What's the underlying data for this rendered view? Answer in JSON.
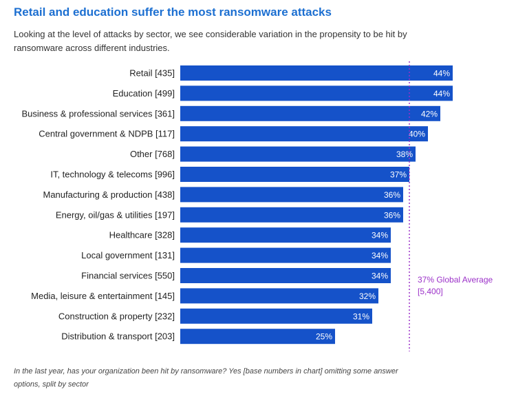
{
  "colors": {
    "title": "#1c6fd1",
    "bar": "#1552c9",
    "average_line": "#9b30c8"
  },
  "header": {
    "title": "Retail and education suffer the most ransomware attacks",
    "subtitle": "Looking at the level of attacks by sector, we see considerable variation in the propensity to be hit by ransomware across different industries."
  },
  "footnote": "In the last year, has your organization been hit by ransomware? Yes [base numbers in chart] omitting some answer options, split by sector",
  "chart_data": {
    "type": "bar",
    "orientation": "horizontal",
    "categories": [
      "Retail [435]",
      "Education [499]",
      "Business & professional services [361]",
      "Central government & NDPB [117]",
      "Other [768]",
      "IT, technology & telecoms [996]",
      "Manufacturing & production [438]",
      "Energy, oil/gas & utilities [197]",
      "Healthcare [328]",
      "Local government [131]",
      "Financial services [550]",
      "Media, leisure & entertainment [145]",
      "Construction & property [232]",
      "Distribution & transport [203]"
    ],
    "values": [
      44,
      44,
      42,
      40,
      38,
      37,
      36,
      36,
      34,
      34,
      34,
      32,
      31,
      25
    ],
    "value_labels": [
      "44%",
      "44%",
      "42%",
      "40%",
      "38%",
      "37%",
      "36%",
      "36%",
      "34%",
      "34%",
      "34%",
      "32%",
      "31%",
      "25%"
    ],
    "reference_line": {
      "value": 37,
      "label_lines": [
        "37% Global Average",
        "[5,400]"
      ]
    },
    "xlim": [
      0,
      50
    ],
    "grid": false,
    "legend": "none"
  }
}
